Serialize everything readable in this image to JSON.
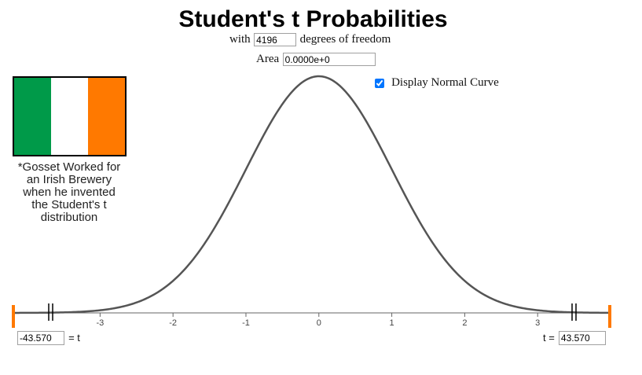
{
  "title": "Student's t Probabilities",
  "df": {
    "prefix": "with",
    "value": "4196",
    "suffix": "degrees of freedom"
  },
  "area": {
    "label": "Area",
    "value": "0.0000e+0"
  },
  "normal_toggle": {
    "label": "Display Normal Curve",
    "checked": true
  },
  "flag_colors": {
    "green": "#009a49",
    "white": "#ffffff",
    "orange": "#ff7900"
  },
  "note": {
    "lines": [
      "*Gosset Worked for",
      "an Irish Brewery",
      "when he invented",
      "the Student's t",
      "distribution"
    ]
  },
  "t_left": {
    "value": "-43.570",
    "suffix": "= t"
  },
  "t_right": {
    "prefix": "t =",
    "value": "43.570"
  },
  "chart_data": {
    "type": "line",
    "series": [
      {
        "name": "",
        "distribution": "student_t",
        "df": 4196,
        "color": "#555555"
      }
    ],
    "xlim": [
      -4.2,
      4.0
    ],
    "x_ticks": [
      -3,
      -2,
      -1,
      0,
      1,
      2,
      3
    ],
    "tick_labels": [
      "-3",
      "-2",
      "-1",
      "0",
      "1",
      "2",
      "3"
    ],
    "grid": false,
    "handle_color": "#ff7900"
  }
}
